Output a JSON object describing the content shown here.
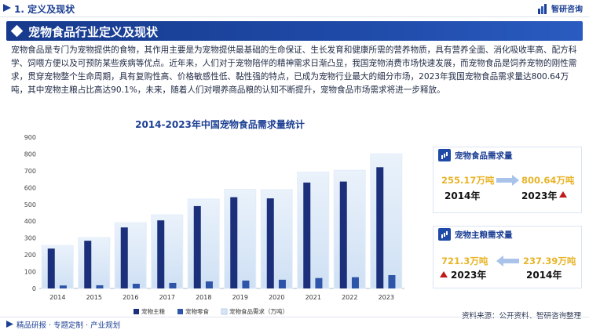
{
  "header": {
    "section_title": "1. 定义及现状",
    "logo_text": "智研咨询"
  },
  "banner": {
    "title": "宠物食品行业定义及现状"
  },
  "intro_text": "宠物食品是专门为宠物提供的食物，其作用主要是为宠物提供最基础的生命保证、生长发育和健康所需的营养物质，具有营养全面、消化吸收率高、配方科学、饲喂方便以及可预防某些疾病等优点。近年来，人们对于宠物陪伴的精神需求日渐凸显，我国宠物消费市场快速发展，而宠物食品是饲养宠物的刚性需求，贯穿宠物整个生命周期，具有复购性高、价格敏感性低、黏性强的特点，已成为宠物行业最大的细分市场，2023年我国宠物食品需求量达800.64万吨，其中宠物主粮占比高达90.1%，未来，随着人们对喂养商品粮的认知不断提升，宠物食品市场需求将进一步释放。",
  "chart_data": {
    "type": "bar",
    "title": "2014-2023年中国宠物食品需求量统计",
    "categories": [
      "2014",
      "2015",
      "2016",
      "2017",
      "2018",
      "2019",
      "2020",
      "2021",
      "2022",
      "2023"
    ],
    "ylim": [
      0,
      900
    ],
    "yticks": [
      0,
      100,
      200,
      300,
      400,
      500,
      600,
      700,
      800,
      900
    ],
    "series": [
      {
        "name": "宠物主粮",
        "color": "#1c2f7a",
        "values": [
          237.39,
          284,
          363,
          405,
          490,
          543,
          536,
          630,
          636,
          721.3
        ]
      },
      {
        "name": "宠物零食",
        "color": "#2f55a8",
        "values": [
          17.78,
          19,
          28,
          33,
          42,
          47,
          52,
          62,
          67,
          79.34
        ]
      },
      {
        "name": "宠物食品需求（万吨）",
        "color": "#d6e6f7",
        "values": [
          255.17,
          303,
          391,
          438,
          532,
          590,
          588,
          692,
          703,
          800.64
        ]
      }
    ],
    "legend_position": "bottom",
    "grid": false
  },
  "panel_demand": {
    "title": "宠物食品需求量",
    "from_value": "255.17万吨",
    "from_year": "2014年",
    "to_value": "800.64万吨",
    "to_year": "2023年"
  },
  "panel_staple": {
    "title": "宠物主粮需求量",
    "from_value": "721.3万吨",
    "from_year": "2023年",
    "to_value": "237.39万吨",
    "to_year": "2014年"
  },
  "footer": {
    "left_text": "精品研报 · 专题定制 · 产业规划",
    "source": "资料来源：公开资料、智研咨询整理"
  },
  "colors": {
    "brand": "#1c3f94",
    "accent_value": "#e8b428",
    "up_arrow": "#c01a1a"
  }
}
